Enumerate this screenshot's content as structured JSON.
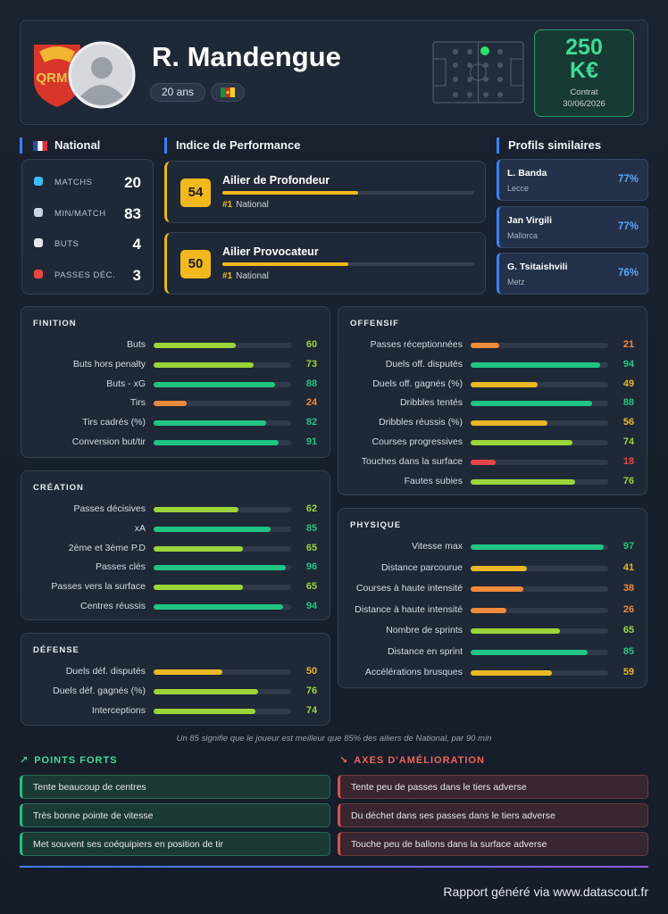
{
  "header": {
    "logo_text": "QRM",
    "name": "R. Mandengue",
    "age": "20 ans",
    "contract": {
      "amount": "250",
      "unit": "K€",
      "label": "Contrat",
      "date": "30/06/2026"
    }
  },
  "league": {
    "title": "National",
    "stats": [
      {
        "label": "MATCHS",
        "value": 20
      },
      {
        "label": "MIN/MATCH",
        "value": 83
      },
      {
        "label": "BUTS",
        "value": 4
      },
      {
        "label": "PASSES DÉC.",
        "value": 3
      }
    ]
  },
  "performance": {
    "title": "Indice de Performance",
    "profiles": [
      {
        "score": 54,
        "name": "Ailier de Profondeur",
        "rank": "#1",
        "league": "National"
      },
      {
        "score": 50,
        "name": "Ailier Provocateur",
        "rank": "#1",
        "league": "National"
      }
    ]
  },
  "similar": {
    "title": "Profils similaires",
    "players": [
      {
        "name": "L. Banda",
        "club": "Lecce",
        "similarity": "77%"
      },
      {
        "name": "Jan Virgili",
        "club": "Mallorca",
        "similarity": "77%"
      },
      {
        "name": "G. Tsitaishvili",
        "club": "Metz",
        "similarity": "76%"
      }
    ]
  },
  "panels": [
    {
      "title": "FINITION",
      "rows": [
        {
          "label": "Buts",
          "value": 60
        },
        {
          "label": "Buts hors penalty",
          "value": 73
        },
        {
          "label": "Buts - xG",
          "value": 88
        },
        {
          "label": "Tirs",
          "value": 24
        },
        {
          "label": "Tirs cadrés (%)",
          "value": 82
        },
        {
          "label": "Conversion but/tir",
          "value": 91
        }
      ]
    },
    {
      "title": "CRÉATION",
      "rows": [
        {
          "label": "Passes décisives",
          "value": 62
        },
        {
          "label": "xA",
          "value": 85
        },
        {
          "label": "2ème et 3ème P.D",
          "value": 65
        },
        {
          "label": "Passes clés",
          "value": 96
        },
        {
          "label": "Passes vers la surface",
          "value": 65
        },
        {
          "label": "Centres réussis",
          "value": 94
        }
      ]
    },
    {
      "title": "DÉFENSE",
      "rows": [
        {
          "label": "Duels déf. disputés",
          "value": 50
        },
        {
          "label": "Duels déf. gagnés (%)",
          "value": 76
        },
        {
          "label": "Interceptions",
          "value": 74
        }
      ]
    },
    {
      "title": "OFFENSIF",
      "rows": [
        {
          "label": "Passes réceptionnées",
          "value": 21
        },
        {
          "label": "Duels off. disputés",
          "value": 94
        },
        {
          "label": "Duels off. gagnés (%)",
          "value": 49
        },
        {
          "label": "Dribbles tentés",
          "value": 88
        },
        {
          "label": "Dribbles réussis (%)",
          "value": 56
        },
        {
          "label": "Courses progressives",
          "value": 74
        },
        {
          "label": "Touches dans la surface",
          "value": 18
        },
        {
          "label": "Fautes subies",
          "value": 76
        }
      ]
    },
    {
      "title": "PHYSIQUE",
      "rows": [
        {
          "label": "Vitesse max",
          "value": 97
        },
        {
          "label": "Distance parcourue",
          "value": 41
        },
        {
          "label": "Courses à haute intensité",
          "value": 38
        },
        {
          "label": "Distance à haute intensité",
          "value": 26
        },
        {
          "label": "Nombre de sprints",
          "value": 65
        },
        {
          "label": "Distance en sprint",
          "value": 85
        },
        {
          "label": "Accélérations brusques",
          "value": 59
        }
      ]
    }
  ],
  "footnote": "Un 85 signifie que le joueur est meilleur que 85% des ailiers de National, par 90 min",
  "strengths": {
    "title": "POINTS FORTS",
    "items": [
      "Tente beaucoup de centres",
      "Très bonne pointe de vitesse",
      "Met souvent ses coéquipiers en position de tir"
    ]
  },
  "improvements": {
    "title": "AXES D'AMÉLIORATION",
    "items": [
      "Tente peu de passes dans le tiers adverse",
      "Du déchet dans ses passes dans le tiers adverse",
      "Touche peu de ballons dans la surface adverse"
    ]
  },
  "footer": "Rapport généré via www.datascout.fr"
}
